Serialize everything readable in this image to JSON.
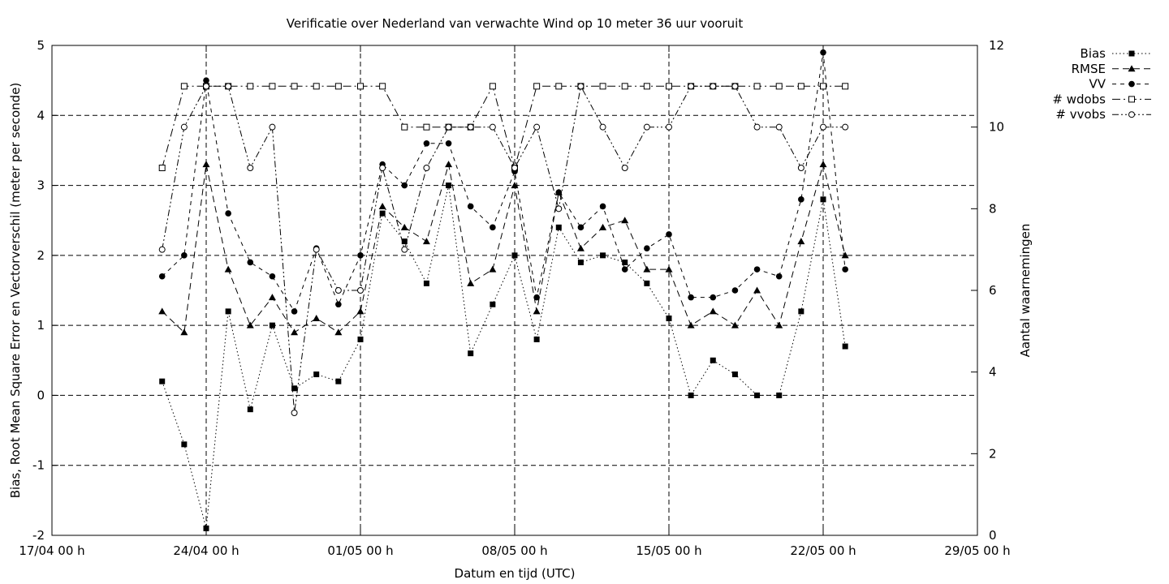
{
  "chart_data": {
    "type": "line",
    "title": "Verificatie over Nederland van verwachte Wind op 10 meter 36 uur vooruit",
    "xlabel": "Datum en tijd (UTC)",
    "ylabel": "Bias, Root Mean Square Error en Vectorverschil (meter per seconde)",
    "y2label": "Aantal waarnemingen",
    "x_unit": "days since 17/04 00 h",
    "xlim": [
      0,
      42
    ],
    "ylim": [
      -2,
      5
    ],
    "y2lim": [
      0,
      12
    ],
    "grid": true,
    "legend_position": "outside-top-right",
    "x_ticks": [
      {
        "value": 0,
        "label": "17/04 00 h"
      },
      {
        "value": 7,
        "label": "24/04 00 h"
      },
      {
        "value": 14,
        "label": "01/05 00 h"
      },
      {
        "value": 21,
        "label": "08/05 00 h"
      },
      {
        "value": 28,
        "label": "15/05 00 h"
      },
      {
        "value": 35,
        "label": "22/05 00 h"
      },
      {
        "value": 42,
        "label": "29/05 00 h"
      }
    ],
    "y_ticks": [
      "-2",
      "-1",
      "0",
      "1",
      "2",
      "3",
      "4",
      "5"
    ],
    "y2_ticks": [
      "0",
      "2",
      "4",
      "6",
      "8",
      "10",
      "12"
    ],
    "x": [
      5,
      6,
      7,
      8,
      9,
      10,
      11,
      12,
      13,
      14,
      15,
      16,
      17,
      18,
      19,
      20,
      21,
      22,
      23,
      24,
      25,
      26,
      27,
      28,
      29,
      30,
      31,
      32,
      33,
      34,
      35,
      36
    ],
    "series": [
      {
        "name": "Bias",
        "axis": "y",
        "marker": "filled-square",
        "line": "dotted",
        "values": [
          0.2,
          -0.7,
          -1.9,
          1.2,
          -0.2,
          1.0,
          0.1,
          0.3,
          0.2,
          0.8,
          2.6,
          2.2,
          1.6,
          3.0,
          0.6,
          1.3,
          2.0,
          0.8,
          2.4,
          1.9,
          2.0,
          1.9,
          1.6,
          1.1,
          0.0,
          0.5,
          0.3,
          0.0,
          0.0,
          1.2,
          2.8,
          0.7
        ]
      },
      {
        "name": "RMSE",
        "axis": "y",
        "marker": "filled-triangle",
        "line": "dashed",
        "values": [
          1.2,
          0.9,
          3.3,
          1.8,
          1.0,
          1.4,
          0.9,
          1.1,
          0.9,
          1.2,
          2.7,
          2.4,
          2.2,
          3.3,
          1.6,
          1.8,
          3.0,
          1.2,
          2.9,
          2.1,
          2.4,
          2.5,
          1.8,
          1.8,
          1.0,
          1.2,
          1.0,
          1.5,
          1.0,
          2.2,
          3.3,
          2.0
        ]
      },
      {
        "name": "VV",
        "axis": "y",
        "marker": "filled-circle",
        "line": "dash-short",
        "values": [
          1.7,
          2.0,
          4.5,
          2.6,
          1.9,
          1.7,
          1.2,
          2.1,
          1.3,
          2.0,
          3.3,
          3.0,
          3.6,
          3.6,
          2.7,
          2.4,
          3.2,
          1.4,
          2.9,
          2.4,
          2.7,
          1.8,
          2.1,
          2.3,
          1.4,
          1.4,
          1.5,
          1.8,
          1.7,
          2.8,
          4.9,
          1.8
        ]
      },
      {
        "name": "# wdobs",
        "axis": "y2",
        "marker": "open-square",
        "line": "dash-dot",
        "values": [
          9,
          11,
          11,
          11,
          11,
          11,
          11,
          11,
          11,
          11,
          11,
          10,
          10,
          10,
          10,
          11,
          9,
          11,
          11,
          11,
          11,
          11,
          11,
          11,
          11,
          11,
          11,
          11,
          11,
          11,
          11,
          11
        ]
      },
      {
        "name": "# vvobs",
        "axis": "y2",
        "marker": "open-circle",
        "line": "dash-dot-dot",
        "values": [
          7,
          10,
          11,
          11,
          9,
          10,
          3,
          7,
          6,
          6,
          9,
          7,
          9,
          10,
          10,
          10,
          9,
          10,
          8,
          11,
          10,
          9,
          10,
          10,
          11,
          11,
          11,
          10,
          10,
          9,
          10,
          10
        ]
      }
    ]
  }
}
